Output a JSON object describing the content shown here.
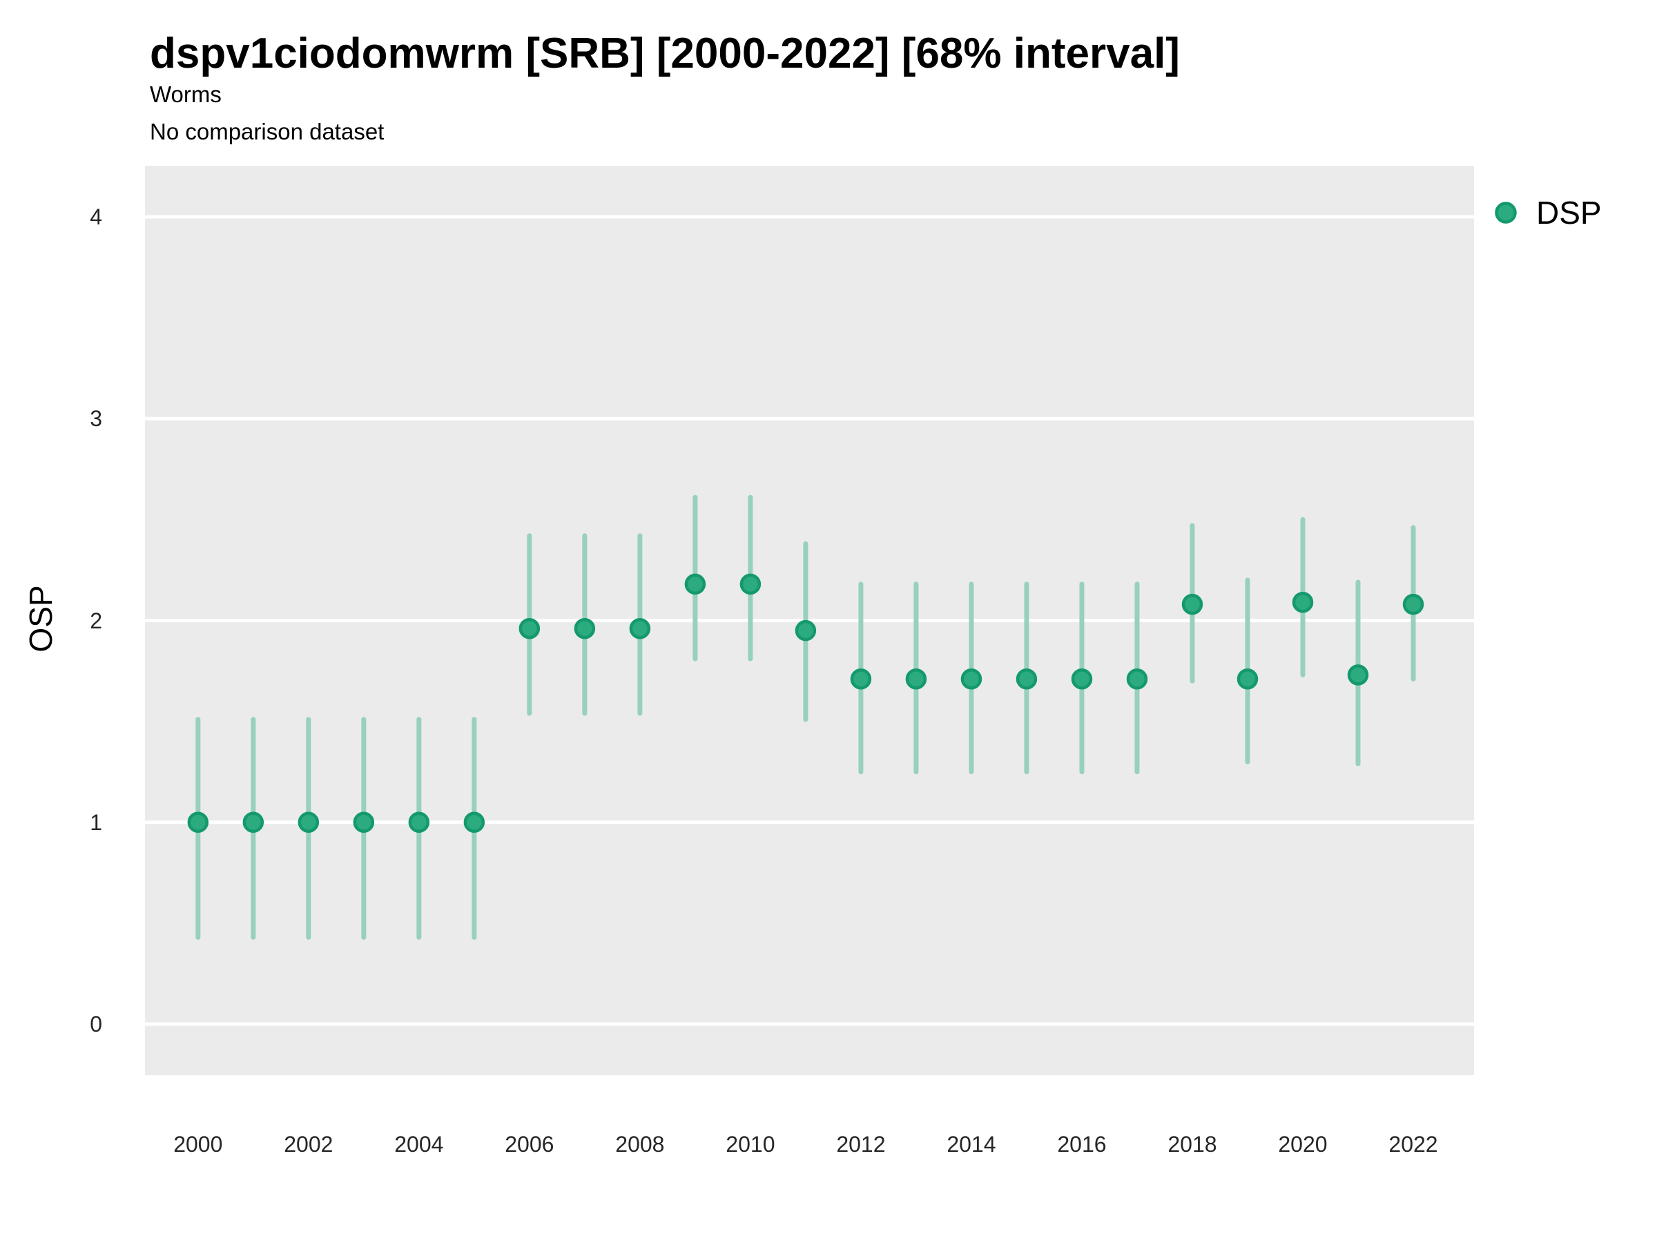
{
  "header": {
    "title": "dspv1ciodomwrm [SRB] [2000-2022] [68% interval]",
    "subtitle": "Worms",
    "comparison_note": "No comparison dataset"
  },
  "legend": {
    "position": "right",
    "items": [
      {
        "label": "DSP"
      }
    ]
  },
  "colors": {
    "point_fill": "#2CAB7E",
    "point_stroke": "#14996E",
    "interval_line": "#97D1BB",
    "panel_background": "#EBEBEB",
    "gridline": "#FFFFFF",
    "title_text": "#000000",
    "tick_text": "#262626"
  },
  "chart_data": {
    "type": "scatter",
    "title": "dspv1ciodomwrm [SRB] [2000-2022] [68% interval]",
    "subtitle": "Worms",
    "note": "No comparison dataset",
    "xlabel": "",
    "ylabel": "OSP",
    "interval_level": "68%",
    "grid": "major-horizontal-only",
    "legend_position": "right",
    "xlim": [
      1999.04,
      2023.1
    ],
    "ylim": [
      -0.253,
      4.253
    ],
    "x_ticks": [
      2000,
      2002,
      2004,
      2006,
      2008,
      2010,
      2012,
      2014,
      2016,
      2018,
      2020,
      2022
    ],
    "y_ticks": [
      0,
      1,
      2,
      3,
      4
    ],
    "series": [
      {
        "name": "DSP",
        "x": [
          2000,
          2001,
          2002,
          2003,
          2004,
          2005,
          2006,
          2007,
          2008,
          2009,
          2010,
          2011,
          2012,
          2013,
          2014,
          2015,
          2016,
          2017,
          2018,
          2019,
          2020,
          2021,
          2022
        ],
        "y": [
          1.0,
          1.0,
          1.0,
          1.0,
          1.0,
          1.0,
          1.96,
          1.96,
          1.96,
          2.18,
          2.18,
          1.95,
          1.71,
          1.71,
          1.71,
          1.71,
          1.71,
          1.71,
          2.08,
          1.71,
          2.09,
          1.73,
          2.08
        ],
        "lo": [
          0.43,
          0.43,
          0.43,
          0.43,
          0.43,
          0.43,
          1.54,
          1.54,
          1.54,
          1.81,
          1.81,
          1.51,
          1.25,
          1.25,
          1.25,
          1.25,
          1.25,
          1.25,
          1.7,
          1.3,
          1.73,
          1.29,
          1.71
        ],
        "hi": [
          1.51,
          1.51,
          1.51,
          1.51,
          1.51,
          1.51,
          2.42,
          2.42,
          2.42,
          2.61,
          2.61,
          2.38,
          2.18,
          2.18,
          2.18,
          2.18,
          2.18,
          2.18,
          2.47,
          2.2,
          2.5,
          2.19,
          2.46
        ]
      }
    ]
  }
}
